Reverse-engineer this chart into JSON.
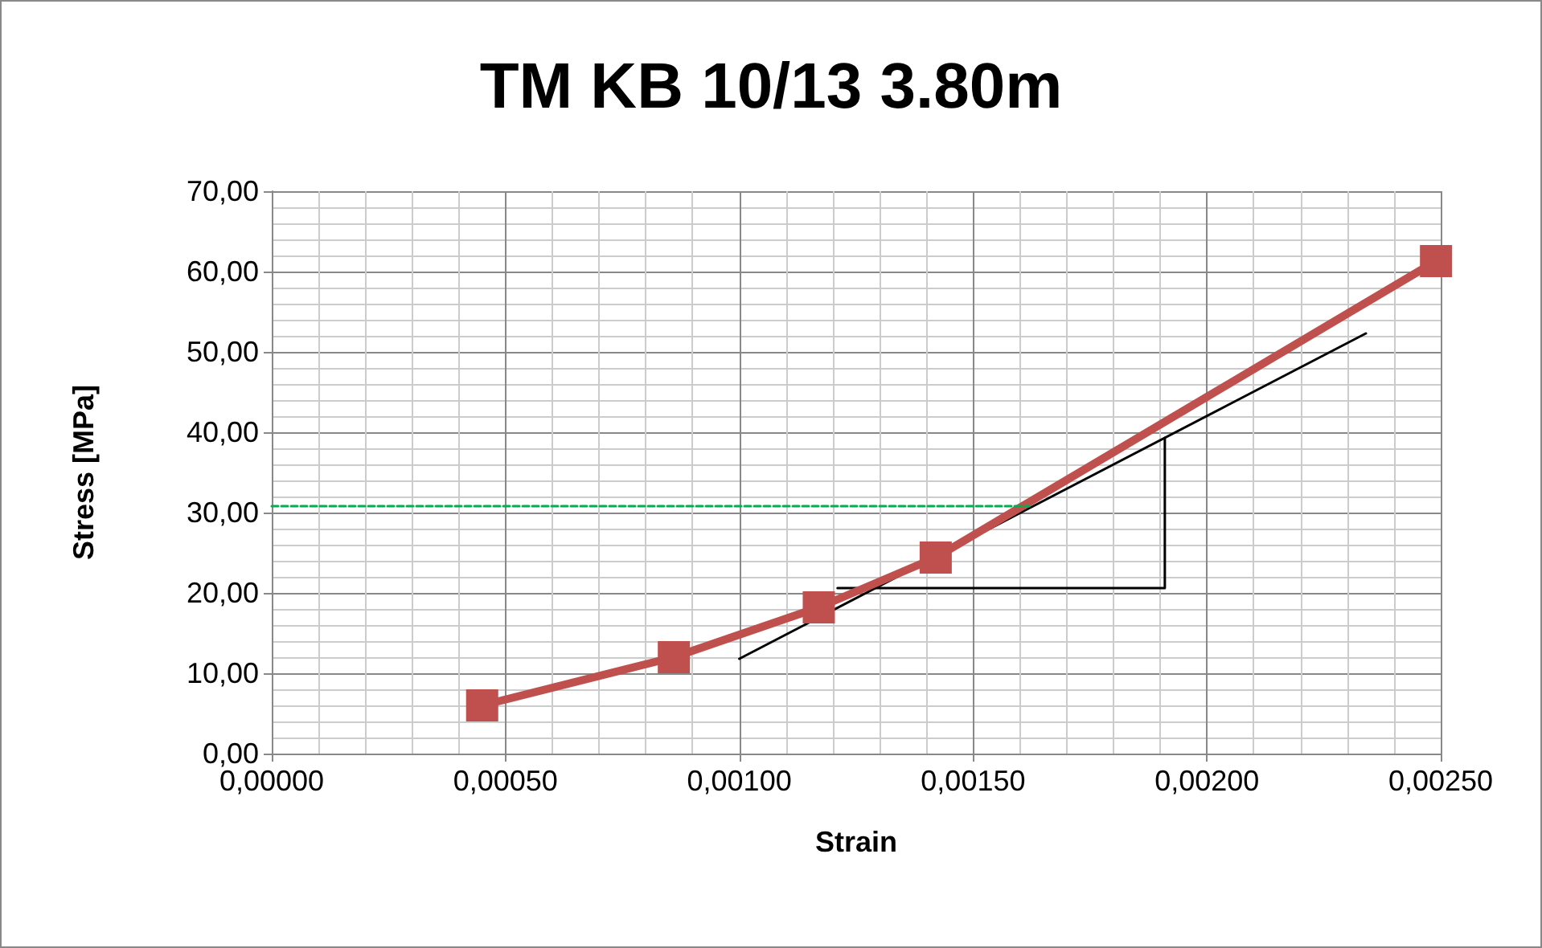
{
  "chart_data": {
    "type": "line",
    "title": "TM KB 10/13 3.80m",
    "xlabel": "Strain",
    "ylabel": "Stress [MPa]",
    "xlim": [
      0,
      0.0025
    ],
    "xticks": [
      {
        "value": 0,
        "label": "0,00000"
      },
      {
        "value": 0.0005,
        "label": "0,00050"
      },
      {
        "value": 0.001,
        "label": "0,00100"
      },
      {
        "value": 0.0015,
        "label": "0,00150"
      },
      {
        "value": 0.002,
        "label": "0,00200"
      },
      {
        "value": 0.0025,
        "label": "0,00250"
      }
    ],
    "ylim": [
      0,
      70
    ],
    "yticks": [
      {
        "value": 0,
        "label": "0,00"
      },
      {
        "value": 10,
        "label": "10,00"
      },
      {
        "value": 20,
        "label": "20,00"
      },
      {
        "value": 30,
        "label": "30,00"
      },
      {
        "value": 40,
        "label": "40,00"
      },
      {
        "value": 50,
        "label": "50,00"
      },
      {
        "value": 60,
        "label": "60,00"
      },
      {
        "value": 70,
        "label": "70,00"
      }
    ],
    "grid": true,
    "series": [
      {
        "color": "#00b050",
        "x": [
          0,
          0.00162
        ],
        "values": [
          30.8,
          30.8
        ],
        "marker": "none",
        "line_style": "dashed"
      },
      {
        "color": "#000000",
        "x": [
          0.001,
          0.00234
        ],
        "values": [
          11.8,
          52.3
        ],
        "marker": "none",
        "line_style": "solid"
      },
      {
        "color": "#000000",
        "x": [
          0.00121,
          0.00191,
          0.00191
        ],
        "values": [
          20.6,
          20.6,
          39.3
        ],
        "marker": "none",
        "line_style": "solid"
      },
      {
        "color": "#c0504d",
        "x": [
          0.00045,
          0.00086,
          0.00117,
          0.00142,
          0.00249
        ],
        "values": [
          6.0,
          12.0,
          18.2,
          24.4,
          61.3
        ],
        "marker": "square",
        "line_style": "solid"
      }
    ]
  }
}
